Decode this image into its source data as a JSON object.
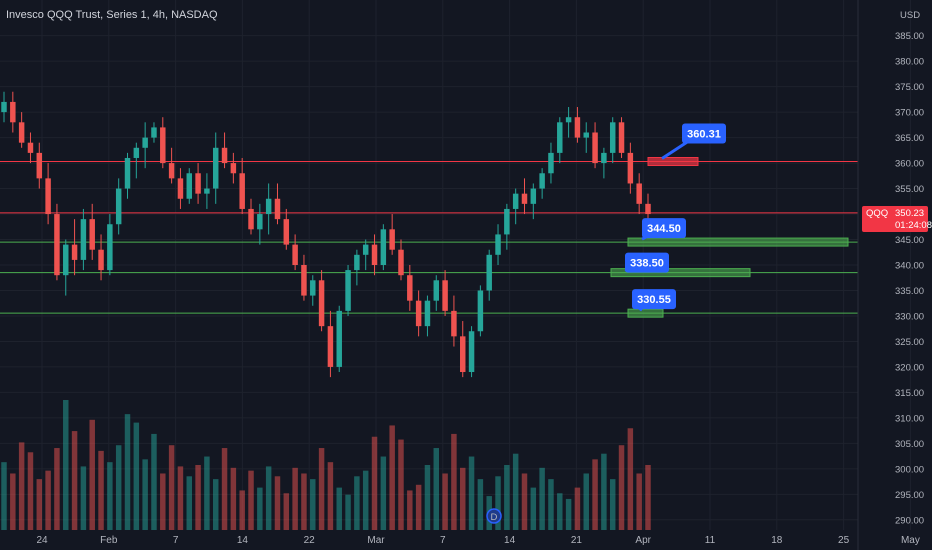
{
  "chart_data": {
    "type": "candlestick",
    "title": "Invesco QQQ Trust, Series 1, 4h, NASDAQ",
    "currency": "USD",
    "ticker": "QQQ",
    "last_price": "350.23",
    "countdown": "01:24:08",
    "y_range": [
      288,
      392
    ],
    "y_ticks": [
      "385.00",
      "380.00",
      "375.00",
      "370.00",
      "365.00",
      "360.00",
      "355.00",
      "350.00",
      "345.00",
      "340.00",
      "335.00",
      "330.00",
      "325.00",
      "320.00",
      "315.00",
      "310.00",
      "305.00",
      "300.00",
      "295.00",
      "290.00"
    ],
    "y_tick_values": [
      385,
      380,
      375,
      370,
      365,
      360,
      355,
      350,
      345,
      340,
      335,
      330,
      325,
      320,
      315,
      310,
      305,
      300,
      295,
      290
    ],
    "x_ticks": [
      "24",
      "Feb",
      "7",
      "14",
      "22",
      "Mar",
      "7",
      "14",
      "21",
      "Apr",
      "11",
      "18",
      "25",
      "May"
    ],
    "horizontal_lines": [
      {
        "price": 360.31,
        "color": "#f23645"
      },
      {
        "price": 350.23,
        "color": "#f23645"
      },
      {
        "price": 344.5,
        "color": "#4caf50"
      },
      {
        "price": 338.5,
        "color": "#4caf50"
      },
      {
        "price": 330.55,
        "color": "#4caf50"
      }
    ],
    "callouts": [
      {
        "label": "360.31",
        "price": 360.31,
        "color": "#f23645"
      },
      {
        "label": "344.50",
        "price": 344.5,
        "color": "#4caf50"
      },
      {
        "label": "338.50",
        "price": 338.5,
        "color": "#4caf50"
      },
      {
        "label": "330.55",
        "price": 330.55,
        "color": "#4caf50"
      }
    ],
    "colors": {
      "up": "#26a69a",
      "down": "#ef5350",
      "callout": "#2962ff",
      "background": "#131722"
    },
    "candles": [
      [
        370,
        374,
        368,
        372
      ],
      [
        372,
        374,
        366,
        368
      ],
      [
        368,
        370,
        363,
        364
      ],
      [
        364,
        366,
        360,
        362
      ],
      [
        362,
        364,
        355,
        357
      ],
      [
        357,
        360,
        348,
        350
      ],
      [
        350,
        352,
        337,
        338
      ],
      [
        338,
        345,
        334,
        344
      ],
      [
        344,
        349,
        338,
        341
      ],
      [
        341,
        351,
        339,
        349
      ],
      [
        349,
        352,
        341,
        343
      ],
      [
        343,
        346,
        337,
        339
      ],
      [
        339,
        350,
        338,
        348
      ],
      [
        348,
        357,
        346,
        355
      ],
      [
        355,
        362,
        353,
        361
      ],
      [
        361,
        364,
        357,
        363
      ],
      [
        363,
        368,
        359,
        365
      ],
      [
        365,
        368,
        364,
        367
      ],
      [
        367,
        369,
        359,
        360
      ],
      [
        360,
        363,
        356,
        357
      ],
      [
        357,
        359,
        351,
        353
      ],
      [
        353,
        359,
        352,
        358
      ],
      [
        358,
        360,
        352,
        354
      ],
      [
        354,
        358,
        351,
        355
      ],
      [
        355,
        366,
        352,
        363
      ],
      [
        363,
        366,
        359,
        360
      ],
      [
        360,
        362,
        356,
        358
      ],
      [
        358,
        361,
        350,
        351
      ],
      [
        351,
        353,
        346,
        347
      ],
      [
        347,
        352,
        344,
        350
      ],
      [
        350,
        356,
        346,
        353
      ],
      [
        353,
        356,
        348,
        349
      ],
      [
        349,
        351,
        343,
        344
      ],
      [
        344,
        346,
        339,
        340
      ],
      [
        340,
        342,
        333,
        334
      ],
      [
        334,
        338,
        332,
        337
      ],
      [
        337,
        339,
        327,
        328
      ],
      [
        328,
        331,
        318,
        320
      ],
      [
        320,
        332,
        319,
        331
      ],
      [
        331,
        340,
        330,
        339
      ],
      [
        339,
        343,
        336,
        342
      ],
      [
        342,
        345,
        339,
        344
      ],
      [
        344,
        346,
        338,
        340
      ],
      [
        340,
        348,
        339,
        347
      ],
      [
        347,
        350,
        342,
        343
      ],
      [
        343,
        345,
        337,
        338
      ],
      [
        338,
        340,
        331,
        333
      ],
      [
        333,
        335,
        326,
        328
      ],
      [
        328,
        334,
        326,
        333
      ],
      [
        333,
        338,
        331,
        337
      ],
      [
        337,
        339,
        330,
        331
      ],
      [
        331,
        334,
        324,
        326
      ],
      [
        326,
        329,
        318,
        319
      ],
      [
        319,
        328,
        318,
        327
      ],
      [
        327,
        336,
        326,
        335
      ],
      [
        335,
        343,
        333,
        342
      ],
      [
        342,
        348,
        340,
        346
      ],
      [
        346,
        352,
        343,
        351
      ],
      [
        351,
        355,
        348,
        354
      ],
      [
        354,
        357,
        350,
        352
      ],
      [
        352,
        356,
        349,
        355
      ],
      [
        355,
        359,
        353,
        358
      ],
      [
        358,
        364,
        356,
        362
      ],
      [
        362,
        369,
        360,
        368
      ],
      [
        368,
        371,
        365,
        369
      ],
      [
        369,
        371,
        364,
        365
      ],
      [
        365,
        368,
        362,
        366
      ],
      [
        366,
        368,
        359,
        360
      ],
      [
        360,
        363,
        357,
        362
      ],
      [
        362,
        369,
        360,
        368
      ],
      [
        368,
        369,
        361,
        362
      ],
      [
        362,
        364,
        354,
        356
      ],
      [
        356,
        358,
        350,
        352
      ],
      [
        352,
        354,
        349,
        350
      ]
    ],
    "volumes": [
      48,
      40,
      62,
      55,
      36,
      42,
      58,
      92,
      70,
      45,
      78,
      56,
      48,
      60,
      82,
      76,
      50,
      68,
      40,
      60,
      45,
      38,
      46,
      52,
      36,
      58,
      44,
      28,
      42,
      30,
      45,
      38,
      26,
      44,
      40,
      36,
      58,
      48,
      30,
      25,
      38,
      42,
      66,
      52,
      74,
      64,
      28,
      32,
      46,
      58,
      40,
      68,
      44,
      52,
      36,
      24,
      38,
      46,
      54,
      40,
      30,
      44,
      36,
      26,
      22,
      30,
      40,
      50,
      54,
      36,
      60,
      72,
      40,
      46
    ]
  }
}
